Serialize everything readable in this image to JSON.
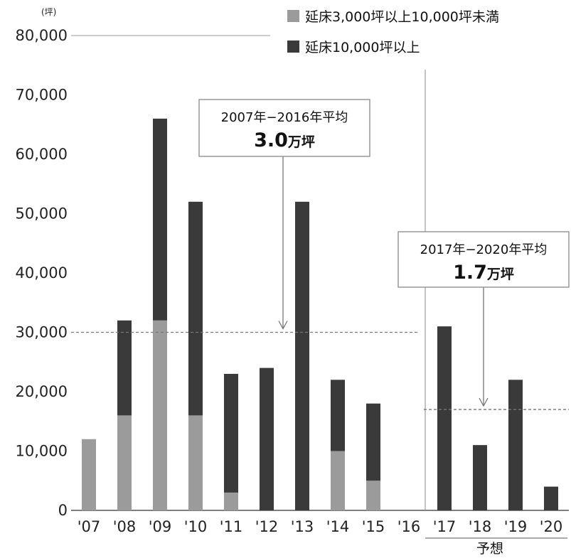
{
  "chart_data": {
    "type": "bar",
    "stacked": true,
    "unit": "(坪)",
    "categories": [
      "'07",
      "'08",
      "'09",
      "'10",
      "'11",
      "'12",
      "'13",
      "'14",
      "'15",
      "'16",
      "'17",
      "'18",
      "'19",
      "'20"
    ],
    "series": [
      {
        "name": "延床3,000坪以上10,000坪未満",
        "color": "#9b9b9b",
        "values": [
          12000,
          16000,
          32000,
          16000,
          3000,
          0,
          0,
          10000,
          5000,
          0,
          0,
          0,
          0,
          0
        ]
      },
      {
        "name": "延床10,000坪以上",
        "color": "#3a3a3a",
        "values": [
          0,
          16000,
          34000,
          36000,
          20000,
          24000,
          52000,
          12000,
          13000,
          0,
          31000,
          11000,
          22000,
          4000
        ]
      }
    ],
    "ylim": [
      0,
      80000
    ],
    "yticks": [
      "0",
      "10,000",
      "20,000",
      "30,000",
      "40,000",
      "50,000",
      "60,000",
      "70,000",
      "80,000"
    ],
    "legend_position": "top-right",
    "forecast_label": "予想",
    "annotations": [
      {
        "title": "2007年−2016年平均",
        "value": "3.0",
        "unit": "万坪",
        "line_value": 30000
      },
      {
        "title": "2017年−2020年平均",
        "value": "1.7",
        "unit": "万坪",
        "line_value": 17000
      }
    ]
  }
}
